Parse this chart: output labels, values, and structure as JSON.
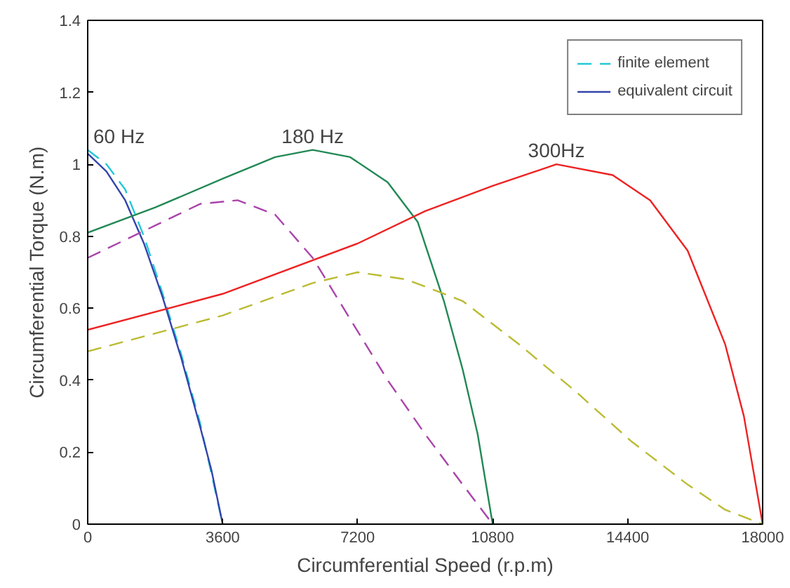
{
  "chart_data": {
    "type": "line",
    "xlabel": "Circumferential Speed (r.p.m)",
    "ylabel": "Circumferential Torque (N.m)",
    "xlim": [
      0,
      18000
    ],
    "ylim": [
      0,
      1.4
    ],
    "xticks": [
      0,
      3600,
      7200,
      10800,
      14400,
      18000
    ],
    "yticks": [
      0,
      0.2,
      0.4,
      0.6,
      0.8,
      1,
      1.2,
      1.4
    ],
    "grid": false,
    "legend": "top right",
    "marker": "none",
    "series": [
      {
        "name": "finite element",
        "color": "#22c8d8",
        "line_style": "dashed",
        "x": [
          0,
          500,
          1000,
          1500,
          2000,
          2500,
          3000,
          3600
        ],
        "values": [
          1.04,
          1.0,
          0.93,
          0.8,
          0.64,
          0.47,
          0.28,
          0
        ]
      },
      {
        "name": "equivalent circuit",
        "color": "#3344aa",
        "line_style": "solid",
        "x": [
          0,
          500,
          1000,
          1500,
          2000,
          2500,
          3000,
          3300,
          3600
        ],
        "values": [
          1.03,
          0.98,
          0.9,
          0.78,
          0.63,
          0.46,
          0.27,
          0.15,
          0
        ]
      },
      {
        "color": "#aa44aa",
        "line_style": "dashed",
        "x": [
          0,
          1800,
          3000,
          4000,
          5000,
          6000,
          7000,
          8000,
          9000,
          10000,
          10800
        ],
        "values": [
          0.74,
          0.83,
          0.89,
          0.9,
          0.86,
          0.74,
          0.57,
          0.4,
          0.25,
          0.11,
          0
        ]
      },
      {
        "color": "#228855",
        "line_style": "solid",
        "x": [
          0,
          1800,
          3600,
          5000,
          6000,
          7000,
          8000,
          8800,
          9500,
          10000,
          10400,
          10800
        ],
        "values": [
          0.81,
          0.88,
          0.96,
          1.02,
          1.04,
          1.02,
          0.95,
          0.84,
          0.62,
          0.43,
          0.25,
          0
        ]
      },
      {
        "color": "#bbbb33",
        "line_style": "dashed",
        "x": [
          0,
          3600,
          6000,
          7200,
          8500,
          10000,
          11500,
          13000,
          14500,
          16000,
          17000,
          18000
        ],
        "values": [
          0.48,
          0.58,
          0.67,
          0.7,
          0.68,
          0.62,
          0.5,
          0.37,
          0.23,
          0.11,
          0.04,
          0
        ]
      },
      {
        "color": "#ee2222",
        "line_style": "solid",
        "x": [
          0,
          3600,
          7200,
          9000,
          10800,
          12500,
          14000,
          15000,
          16000,
          17000,
          17500,
          18000
        ],
        "values": [
          0.54,
          0.64,
          0.78,
          0.87,
          0.94,
          1.0,
          0.97,
          0.9,
          0.76,
          0.5,
          0.3,
          0
        ]
      }
    ],
    "annotations": [
      {
        "text": "60 Hz",
        "x": 0,
        "y": 1.04
      },
      {
        "text": "180 Hz",
        "x": 6000,
        "y": 1.04
      },
      {
        "text": "300Hz",
        "x": 12500,
        "y": 1.0
      }
    ]
  }
}
